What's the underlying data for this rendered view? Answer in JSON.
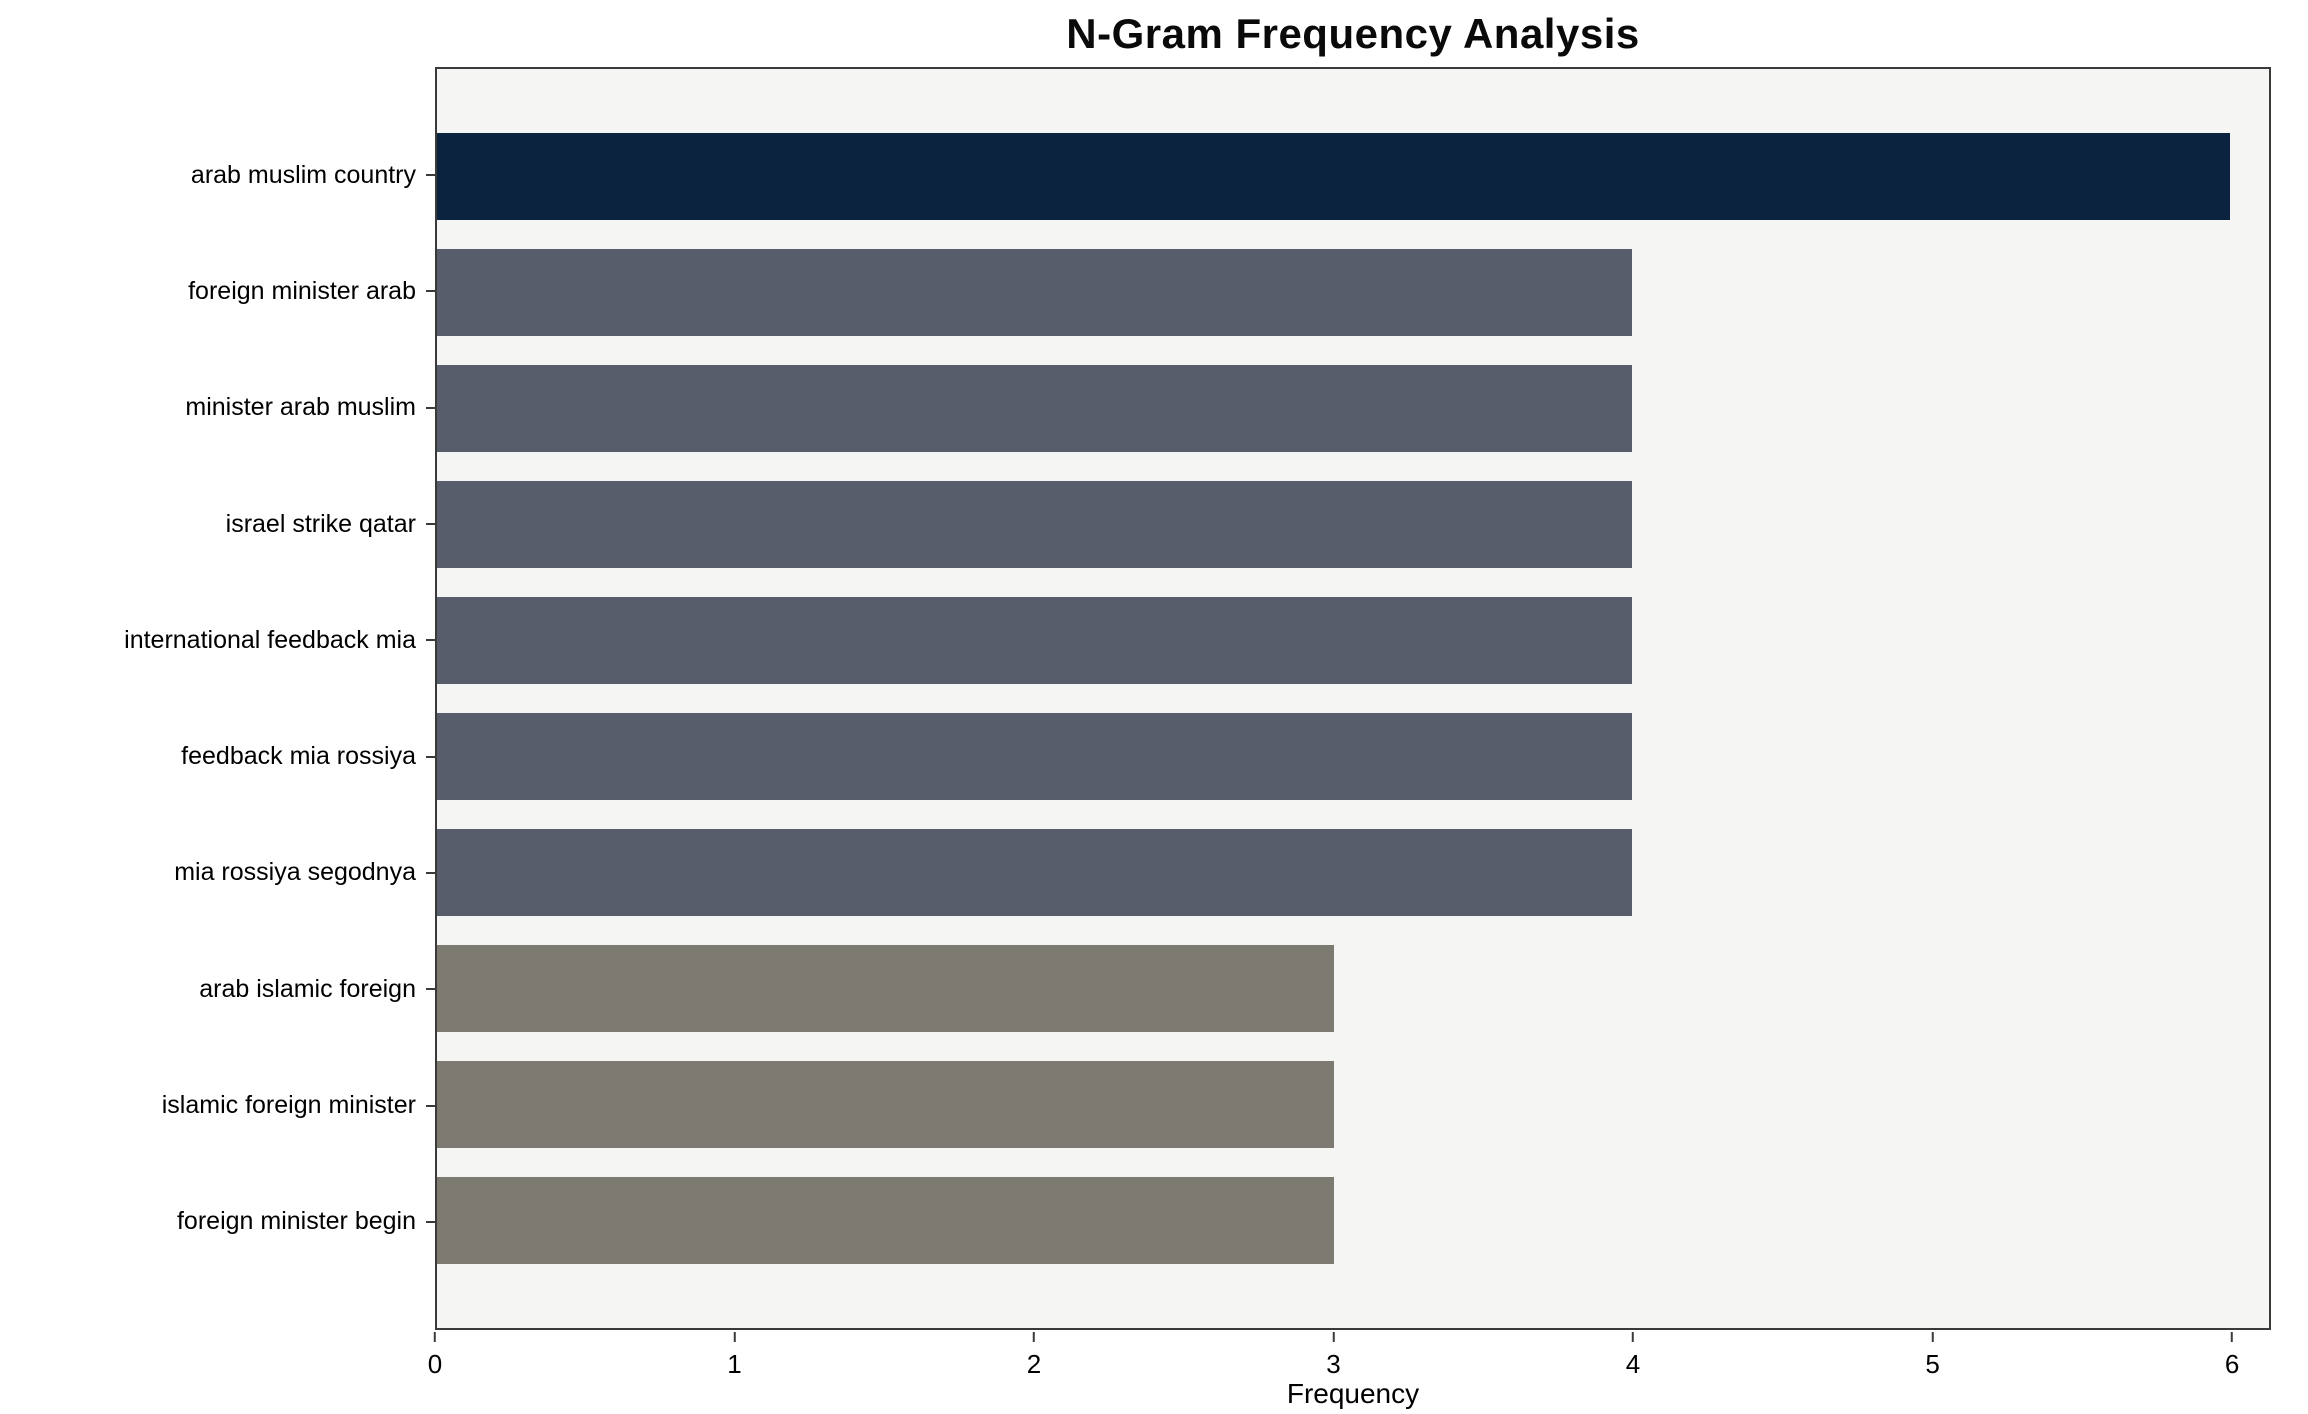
{
  "chart_data": {
    "type": "bar",
    "orientation": "horizontal",
    "title": "N-Gram Frequency Analysis",
    "xlabel": "Frequency",
    "ylabel": "",
    "categories": [
      "arab muslim country",
      "foreign minister arab",
      "minister arab muslim",
      "israel strike qatar",
      "international feedback mia",
      "feedback mia rossiya",
      "mia rossiya segodnya",
      "arab islamic foreign",
      "islamic foreign minister",
      "foreign minister begin"
    ],
    "values": [
      6,
      4,
      4,
      4,
      4,
      4,
      4,
      3,
      3,
      3
    ],
    "bar_colors": [
      "#0c2340",
      "#575d6b",
      "#575d6b",
      "#575d6b",
      "#575d6b",
      "#575d6b",
      "#575d6b",
      "#7d7a72",
      "#7d7a72",
      "#7d7a72"
    ],
    "xlim": [
      0,
      6.13
    ],
    "xticks": [
      0,
      1,
      2,
      3,
      4,
      5,
      6
    ],
    "grid": false,
    "legend_position": "none",
    "plot_background": "#f5f5f3",
    "figure_background": "#ffffff",
    "axis_color": "#3a3a3a"
  }
}
